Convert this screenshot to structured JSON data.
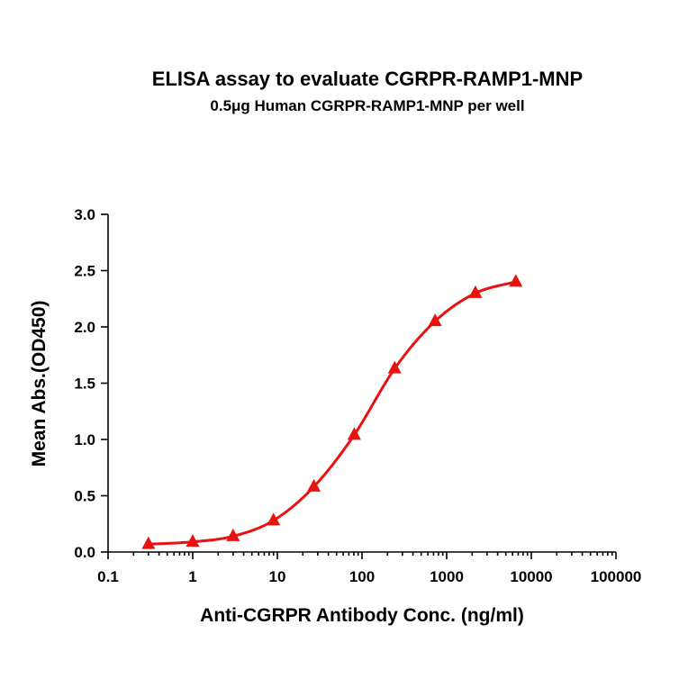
{
  "chart_data": {
    "type": "line",
    "title": "ELISA assay to evaluate CGRPR-RAMP1-MNP",
    "subtitle": "0.5μg Human CGRPR-RAMP1-MNP per well",
    "xlabel": "Anti-CGRPR Antibody Conc. (ng/ml)",
    "ylabel": "Mean Abs.(OD450)",
    "x_scale": "log",
    "xlim": [
      0.1,
      100000
    ],
    "ylim": [
      0,
      3.0
    ],
    "x_ticks": [
      "0.1",
      "1",
      "10",
      "100",
      "1000",
      "10000",
      "100000"
    ],
    "y_ticks": [
      "0.0",
      "0.5",
      "1.0",
      "1.5",
      "2.0",
      "2.5",
      "3.0"
    ],
    "grid": false,
    "series": [
      {
        "color": "#e8120f",
        "marker": "triangle",
        "x": [
          0.3,
          1,
          3,
          9,
          27,
          81,
          243,
          729,
          2187,
          6561
        ],
        "y": [
          0.07,
          0.09,
          0.14,
          0.28,
          0.58,
          1.04,
          1.63,
          2.05,
          2.3,
          2.4
        ]
      }
    ]
  }
}
